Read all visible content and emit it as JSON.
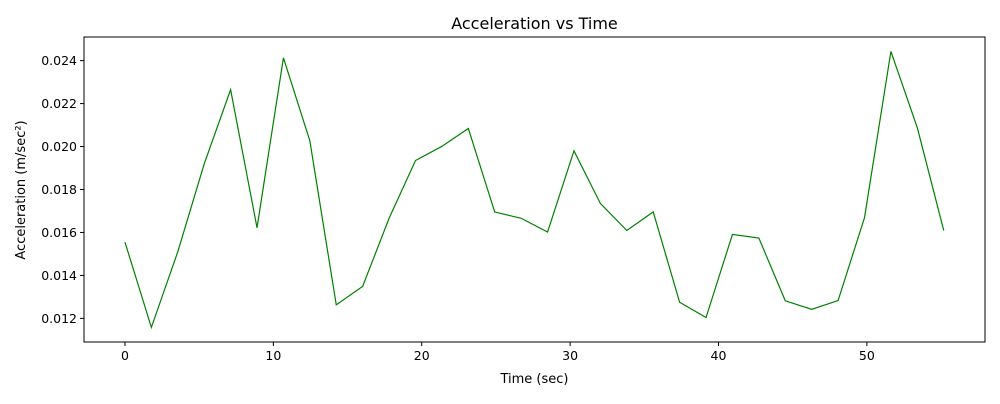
{
  "chart_data": {
    "type": "line",
    "title": "Acceleration vs Time",
    "xlabel": "Time (sec)",
    "ylabel": "Acceleration (m/sec²)",
    "xlim": [
      -2.76,
      57.96
    ],
    "ylim": [
      0.0109,
      0.0251
    ],
    "x_ticks": [
      0,
      10,
      20,
      30,
      40,
      50
    ],
    "x_tick_labels": [
      "0",
      "10",
      "20",
      "30",
      "40",
      "50"
    ],
    "y_ticks": [
      0.012,
      0.014,
      0.016,
      0.018,
      0.02,
      0.022,
      0.024
    ],
    "y_tick_labels": [
      "0.012",
      "0.014",
      "0.016",
      "0.018",
      "0.020",
      "0.022",
      "0.024"
    ],
    "grid": false,
    "line_color": "#008000",
    "series": [
      {
        "x": [
          0.0,
          1.78,
          3.56,
          5.34,
          7.12,
          8.9,
          10.68,
          12.46,
          14.24,
          16.02,
          17.8,
          19.58,
          21.36,
          23.14,
          24.92,
          26.7,
          28.48,
          30.26,
          32.04,
          33.82,
          35.6,
          37.38,
          39.16,
          40.94,
          42.72,
          44.5,
          46.28,
          48.06,
          49.84,
          51.62,
          53.4,
          55.18
        ],
        "y": [
          0.01555,
          0.01158,
          0.0151,
          0.01919,
          0.02265,
          0.01622,
          0.02413,
          0.02027,
          0.01263,
          0.01349,
          0.01666,
          0.01935,
          0.02001,
          0.02084,
          0.01695,
          0.01666,
          0.01602,
          0.0198,
          0.01735,
          0.01609,
          0.01696,
          0.01275,
          0.01204,
          0.01591,
          0.01574,
          0.01282,
          0.01242,
          0.01283,
          0.01669,
          0.02443,
          0.02087,
          0.01609
        ]
      }
    ]
  }
}
